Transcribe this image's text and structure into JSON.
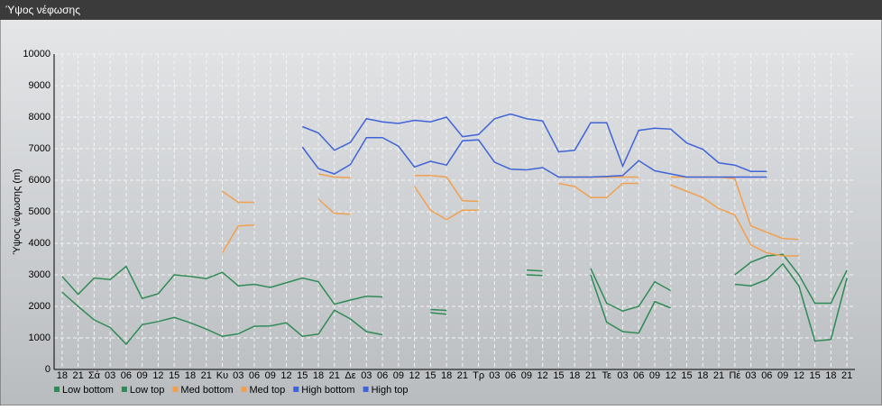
{
  "header": {
    "title": "Ύψος νέφωσης"
  },
  "chart_data": {
    "type": "line",
    "y_label": "Ύψος νέφωσης (m)",
    "categories": [
      "18",
      "21",
      "Σά",
      "03",
      "06",
      "09",
      "12",
      "15",
      "18",
      "21",
      "Κυ",
      "03",
      "06",
      "09",
      "12",
      "15",
      "18",
      "21",
      "Δε",
      "03",
      "06",
      "09",
      "12",
      "15",
      "18",
      "21",
      "Τρ",
      "03",
      "06",
      "09",
      "12",
      "15",
      "18",
      "21",
      "Τε",
      "03",
      "06",
      "09",
      "12",
      "15",
      "18",
      "21",
      "Πέ",
      "03",
      "06",
      "09",
      "12",
      "15",
      "18",
      "21"
    ],
    "ylim": [
      0,
      10000
    ],
    "yticks": [
      0,
      1000,
      2000,
      3000,
      4000,
      5000,
      6000,
      7000,
      8000,
      9000,
      10000
    ],
    "grid": true,
    "series": [
      {
        "name": "Low bottom",
        "color": "#2e8b57",
        "values": [
          2450,
          2000,
          1570,
          1330,
          800,
          1420,
          1520,
          1650,
          1480,
          1280,
          1050,
          1130,
          1370,
          1380,
          1480,
          1050,
          1120,
          1880,
          1600,
          1200,
          1100,
          null,
          null,
          1800,
          1750,
          null,
          null,
          null,
          null,
          3000,
          2980,
          null,
          null,
          3000,
          1500,
          1200,
          1150,
          2150,
          1950,
          null,
          null,
          null,
          2700,
          2650,
          2850,
          3350,
          2650,
          900,
          950,
          2900
        ]
      },
      {
        "name": "Low top",
        "color": "#2e8b57",
        "values": [
          2950,
          2380,
          2900,
          2850,
          3270,
          2250,
          2400,
          3000,
          2950,
          2880,
          3080,
          2650,
          2700,
          2600,
          2750,
          2900,
          2780,
          2070,
          2200,
          2320,
          2300,
          null,
          null,
          1900,
          1870,
          null,
          null,
          null,
          null,
          3150,
          3120,
          null,
          null,
          3200,
          2100,
          1850,
          2000,
          2780,
          2500,
          null,
          null,
          null,
          3000,
          3400,
          3600,
          3650,
          3000,
          2100,
          2100,
          3150
        ]
      },
      {
        "name": "Med bottom",
        "color": "#f0a050",
        "values": [
          null,
          null,
          null,
          null,
          null,
          null,
          null,
          null,
          null,
          null,
          3700,
          4550,
          4580,
          null,
          null,
          null,
          5400,
          4950,
          4920,
          null,
          null,
          null,
          5800,
          5050,
          4750,
          5050,
          5050,
          null,
          null,
          null,
          null,
          5900,
          5800,
          5450,
          5450,
          5900,
          5900,
          null,
          5850,
          5650,
          5450,
          5100,
          4900,
          3950,
          3700,
          3600,
          3600,
          null,
          null,
          null
        ]
      },
      {
        "name": "Med top",
        "color": "#f0a050",
        "values": [
          null,
          null,
          null,
          null,
          null,
          null,
          null,
          null,
          null,
          null,
          5650,
          5300,
          5300,
          null,
          null,
          null,
          6200,
          6100,
          6080,
          null,
          null,
          null,
          6150,
          6150,
          6100,
          5350,
          5330,
          null,
          null,
          null,
          null,
          6100,
          6100,
          6100,
          6100,
          6100,
          6100,
          null,
          6100,
          6100,
          6100,
          6100,
          6050,
          4550,
          4350,
          4150,
          4120,
          null,
          null,
          null
        ]
      },
      {
        "name": "High bottom",
        "color": "#3f63d8",
        "values": [
          null,
          null,
          null,
          null,
          null,
          null,
          null,
          null,
          null,
          null,
          null,
          null,
          null,
          null,
          null,
          7050,
          6370,
          6200,
          6500,
          7350,
          7350,
          7080,
          6420,
          6600,
          6480,
          7250,
          7280,
          6570,
          6350,
          6330,
          6400,
          6100,
          6100,
          6100,
          6120,
          6150,
          6620,
          6300,
          6200,
          6100,
          6100,
          6100,
          6100,
          6100,
          6100,
          null,
          null,
          null,
          null,
          null
        ]
      },
      {
        "name": "High top",
        "color": "#3f63d8",
        "values": [
          null,
          null,
          null,
          null,
          null,
          null,
          null,
          null,
          null,
          null,
          null,
          null,
          null,
          null,
          null,
          7700,
          7500,
          6950,
          7200,
          7950,
          7850,
          7800,
          7900,
          7850,
          8000,
          7380,
          7450,
          7950,
          8100,
          7950,
          7880,
          6900,
          6950,
          7820,
          7820,
          6450,
          7580,
          7650,
          7620,
          7180,
          6980,
          6550,
          6480,
          6280,
          6280,
          null,
          null,
          null,
          null,
          null
        ]
      }
    ]
  }
}
